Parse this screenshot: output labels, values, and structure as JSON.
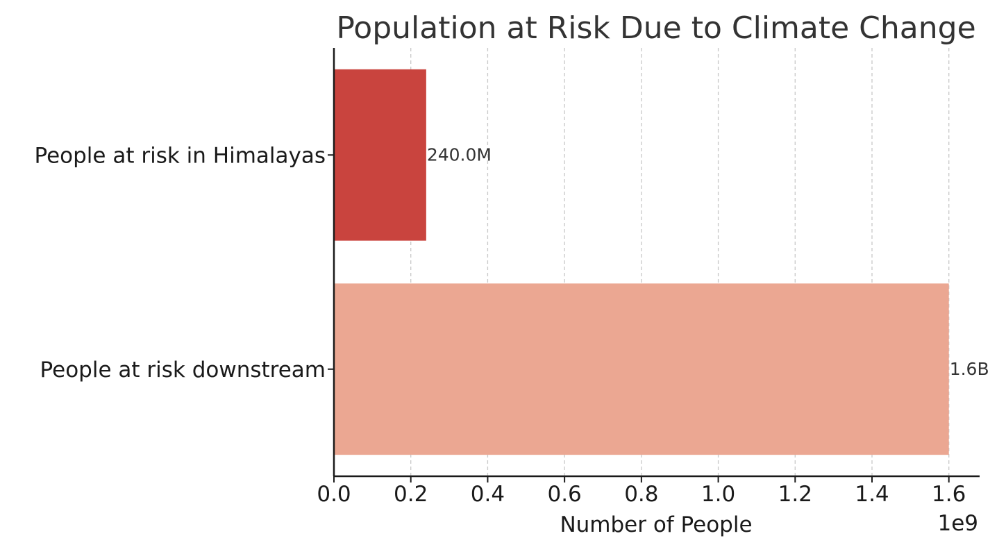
{
  "chart_data": {
    "type": "bar",
    "orientation": "horizontal",
    "title": "Population at Risk Due to Climate Change",
    "xlabel": "Number of People",
    "ylabel": "",
    "offset_label": "1e9",
    "xlim": [
      0,
      1680000000
    ],
    "xticks": [
      {
        "value": 0,
        "label": "0.0"
      },
      {
        "value": 200000000,
        "label": "0.2"
      },
      {
        "value": 400000000,
        "label": "0.4"
      },
      {
        "value": 600000000,
        "label": "0.6"
      },
      {
        "value": 800000000,
        "label": "0.8"
      },
      {
        "value": 1000000000,
        "label": "1.0"
      },
      {
        "value": 1200000000,
        "label": "1.2"
      },
      {
        "value": 1400000000,
        "label": "1.4"
      },
      {
        "value": 1600000000,
        "label": "1.6"
      }
    ],
    "grid": "x-axis dashed",
    "bars": [
      {
        "category": "People at risk in Himalayas",
        "value": 240000000,
        "label": "240.0M",
        "color": "#c9443e"
      },
      {
        "category": "People at risk downstream",
        "value": 1600000000,
        "label": "1.6B",
        "color": "#eba792"
      }
    ]
  }
}
